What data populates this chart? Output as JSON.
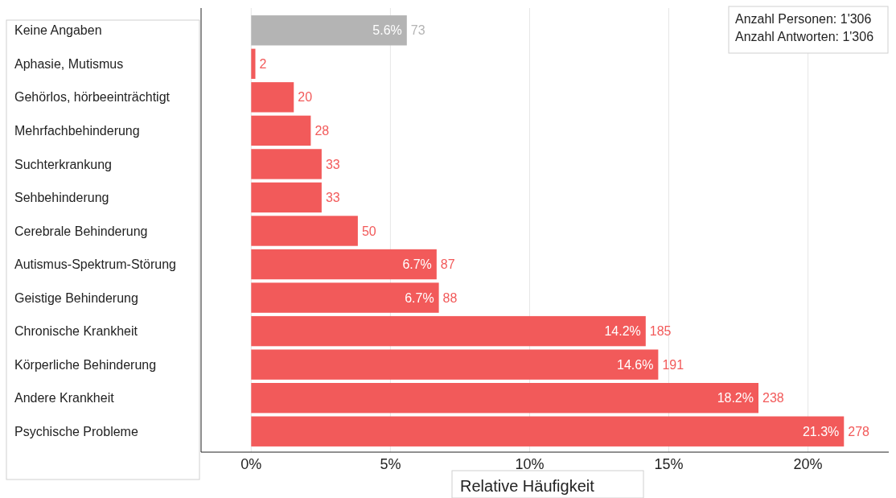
{
  "chart_data": {
    "type": "bar",
    "orientation": "horizontal",
    "xlabel": "Relative Häufigkeit",
    "categories": [
      "Keine Angaben",
      "Aphasie, Mutismus",
      "Gehörlos, hörbeeinträchtigt",
      "Mehrfachbehinderung",
      "Suchterkrankung",
      "Sehbehinderung",
      "Cerebrale Behinderung",
      "Autismus-Spektrum-Störung",
      "Geistige Behinderung",
      "Chronische Krankheit",
      "Körperliche Behinderung",
      "Andere Krankheit",
      "Psychische Probleme"
    ],
    "values": [
      5.59,
      0.15,
      1.53,
      2.14,
      2.53,
      2.53,
      3.83,
      6.66,
      6.74,
      14.17,
      14.62,
      18.22,
      21.29
    ],
    "colors": [
      "#b4b4b4",
      "#f25a5a",
      "#f25a5a",
      "#f25a5a",
      "#f25a5a",
      "#f25a5a",
      "#f25a5a",
      "#f25a5a",
      "#f25a5a",
      "#f25a5a",
      "#f25a5a",
      "#f25a5a",
      "#f25a5a"
    ],
    "value_labels": [
      "5.6%",
      null,
      null,
      null,
      null,
      null,
      null,
      "6.7%",
      "6.7%",
      "14.2%",
      "14.6%",
      "18.2%",
      "21.3%"
    ],
    "xlim": [
      -1.8,
      22.9
    ],
    "xticks": [
      {
        "value": 0,
        "label": "0%"
      },
      {
        "value": 5,
        "label": "5%"
      },
      {
        "value": 10,
        "label": "10%"
      },
      {
        "value": 15,
        "label": "15%"
      },
      {
        "value": 20,
        "label": "20%"
      }
    ],
    "grid": "x",
    "annotations": [
      "Anzahl Personen: 1'306",
      "Anzahl Antworten: 1'306",
      {
        "text": "73",
        "x": 5.59,
        "y": "Keine Angaben"
      },
      {
        "text": "2",
        "x": 0.15,
        "y": "Aphasie, Mutismus"
      },
      {
        "text": "20",
        "x": 1.53,
        "y": "Gehörlos, hörbeeinträchtigt"
      },
      {
        "text": "28",
        "x": 2.14,
        "y": "Mehrfachbehinderung"
      },
      {
        "text": "33",
        "x": 2.53,
        "y": "Suchterkrankung"
      },
      {
        "text": "33",
        "x": 2.53,
        "y": "Sehbehinderung"
      },
      {
        "text": "50",
        "x": 3.83,
        "y": "Cerebrale Behinderung"
      },
      {
        "text": "87",
        "x": 6.66,
        "y": "Autismus-Spektrum-Störung"
      },
      {
        "text": "88",
        "x": 6.74,
        "y": "Geistige Behinderung"
      },
      {
        "text": "185",
        "x": 14.17,
        "y": "Chronische Krankheit"
      },
      {
        "text": "191",
        "x": 14.62,
        "y": "Körperliche Behinderung"
      },
      {
        "text": "238",
        "x": 18.22,
        "y": "Andere Krankheit"
      },
      {
        "text": "278",
        "x": 21.29,
        "y": "Psychische Probleme"
      }
    ]
  }
}
